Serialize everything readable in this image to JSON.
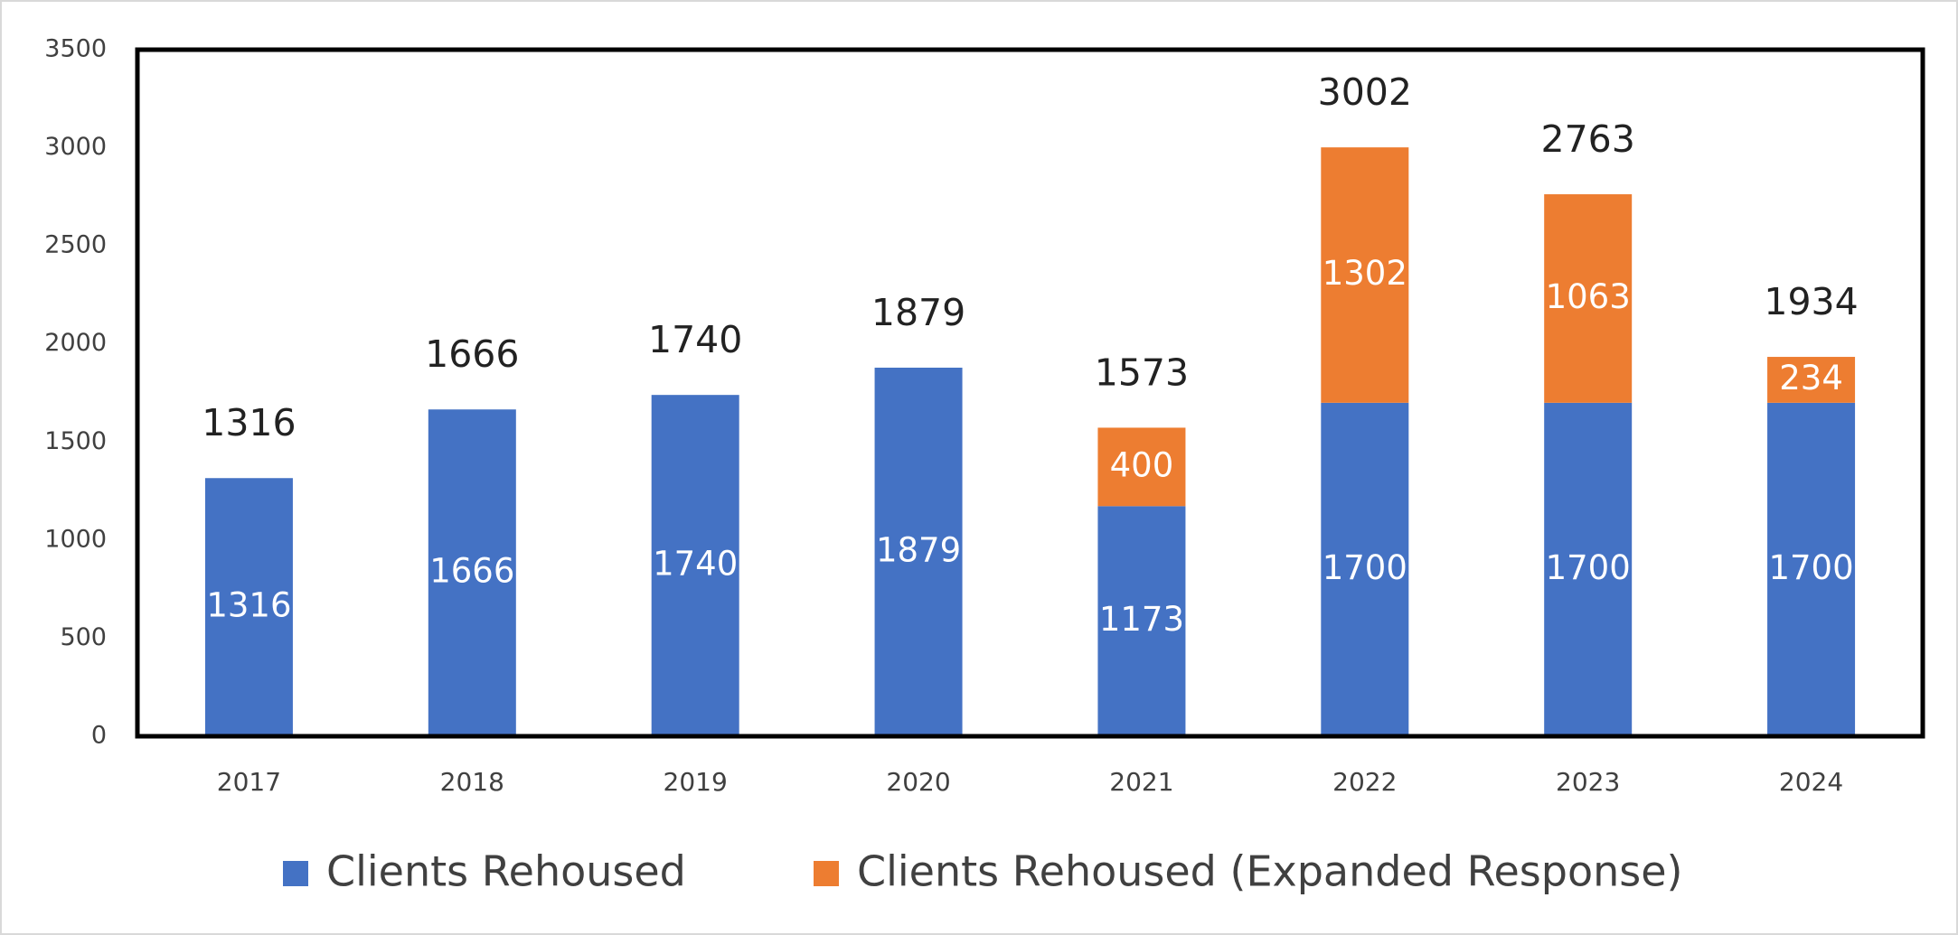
{
  "chart_data": {
    "type": "stacked_bar",
    "categories": [
      "2017",
      "2018",
      "2019",
      "2020",
      "2021",
      "2022",
      "2023",
      "2024"
    ],
    "series": [
      {
        "name": "Clients Rehoused",
        "color": "#4472c4",
        "values": [
          1316,
          1666,
          1740,
          1879,
          1173,
          1700,
          1700,
          1700
        ]
      },
      {
        "name": "Clients Rehoused (Expanded Response)",
        "color": "#ed7d31",
        "values": [
          null,
          null,
          null,
          null,
          400,
          1302,
          1063,
          234
        ]
      }
    ],
    "totals": [
      1316,
      1666,
      1740,
      1879,
      1573,
      3002,
      2763,
      1934
    ],
    "ylim": [
      0,
      3500
    ],
    "yticks": [
      0,
      500,
      1000,
      1500,
      2000,
      2500,
      3000,
      3500
    ],
    "grid": false,
    "legend": "bottom"
  }
}
